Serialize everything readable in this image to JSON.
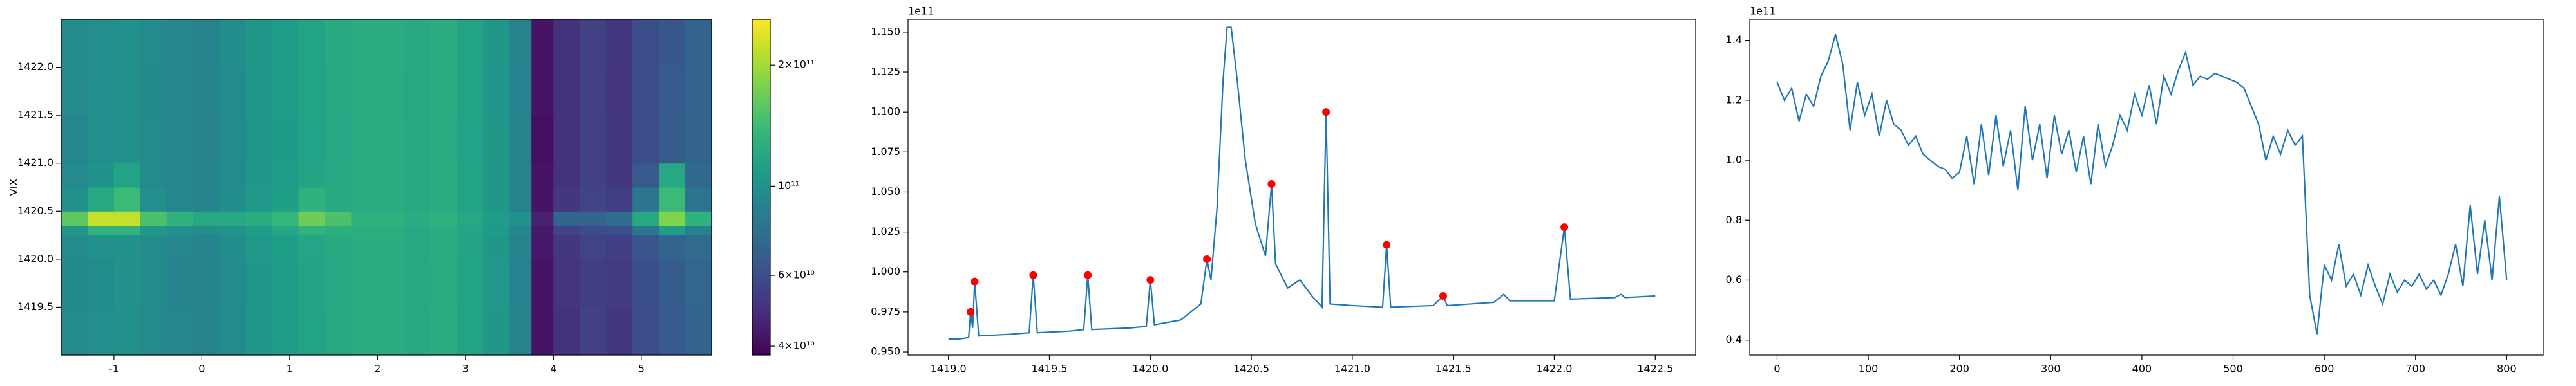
{
  "chart_data": [
    {
      "type": "heatmap",
      "ylabel": "VIX",
      "colormap": "viridis",
      "color_scale": "log",
      "xlim": [
        -1.6,
        5.8
      ],
      "ylim": [
        1419.0,
        1422.5
      ],
      "xticks": [
        -1,
        0,
        1,
        2,
        3,
        4,
        5
      ],
      "yticks": [
        1419.5,
        {
          "value": 1420,
          "label": "1420.0"
        },
        1420.5,
        {
          "value": 1421,
          "label": "1421.0"
        },
        1421.5,
        {
          "value": 1422,
          "label": "1422.0"
        }
      ],
      "x_edges": [
        -1.6,
        -1.3,
        -1.0,
        -0.7,
        -0.4,
        -0.1,
        0.2,
        0.5,
        0.8,
        1.1,
        1.4,
        1.7,
        2.0,
        2.3,
        2.6,
        2.9,
        3.2,
        3.5,
        3.75,
        4.0,
        4.3,
        4.6,
        4.9,
        5.2,
        5.5,
        5.8
      ],
      "y_edges": [
        1419.0,
        1419.5,
        1420.0,
        1420.25,
        1420.35,
        1420.5,
        1420.75,
        1421.0,
        1421.5,
        1422.0,
        1422.5
      ],
      "z": [
        [
          95000000000.0,
          98000000000.0,
          100000000000.0,
          95000000000.0,
          92000000000.0,
          90000000000.0,
          96000000000.0,
          105000000000.0,
          110000000000.0,
          115000000000.0,
          120000000000.0,
          125000000000.0,
          125000000000.0,
          120000000000.0,
          125000000000.0,
          115000000000.0,
          105000000000.0,
          90000000000.0,
          42000000000.0,
          50000000000.0,
          55000000000.0,
          52000000000.0,
          60000000000.0,
          65000000000.0,
          70000000000.0
        ],
        [
          94000000000.0,
          97000000000.0,
          101000000000.0,
          96000000000.0,
          91000000000.0,
          91000000000.0,
          95000000000.0,
          104000000000.0,
          110000000000.0,
          116000000000.0,
          120000000000.0,
          124000000000.0,
          126000000000.0,
          121000000000.0,
          124000000000.0,
          115000000000.0,
          106000000000.0,
          89000000000.0,
          42000000000.0,
          51000000000.0,
          54000000000.0,
          53000000000.0,
          61000000000.0,
          66000000000.0,
          71000000000.0
        ],
        [
          96000000000.0,
          100000000000.0,
          102000000000.0,
          96000000000.0,
          93000000000.0,
          91000000000.0,
          97000000000.0,
          106000000000.0,
          112000000000.0,
          117000000000.0,
          121000000000.0,
          125000000000.0,
          125000000000.0,
          120000000000.0,
          125000000000.0,
          116000000000.0,
          105000000000.0,
          90000000000.0,
          43000000000.0,
          52000000000.0,
          56000000000.0,
          54000000000.0,
          63000000000.0,
          70000000000.0,
          74000000000.0
        ],
        [
          105000000000.0,
          130000000000.0,
          130000000000.0,
          105000000000.0,
          100000000000.0,
          98000000000.0,
          102000000000.0,
          110000000000.0,
          118000000000.0,
          130000000000.0,
          128000000000.0,
          127000000000.0,
          127000000000.0,
          122000000000.0,
          126000000000.0,
          117000000000.0,
          107000000000.0,
          93000000000.0,
          43000000000.0,
          56000000000.0,
          60000000000.0,
          60000000000.0,
          80000000000.0,
          110000000000.0,
          90000000000.0
        ],
        [
          160000000000.0,
          220000000000.0,
          220000000000.0,
          150000000000.0,
          130000000000.0,
          120000000000.0,
          120000000000.0,
          125000000000.0,
          135000000000.0,
          170000000000.0,
          150000000000.0,
          130000000000.0,
          130000000000.0,
          125000000000.0,
          130000000000.0,
          120000000000.0,
          110000000000.0,
          100000000000.0,
          45000000000.0,
          70000000000.0,
          70000000000.0,
          75000000000.0,
          120000000000.0,
          180000000000.0,
          130000000000.0
        ],
        [
          100000000000.0,
          120000000000.0,
          140000000000.0,
          98000000000.0,
          93000000000.0,
          91000000000.0,
          97000000000.0,
          106000000000.0,
          112000000000.0,
          130000000000.0,
          122000000000.0,
          125000000000.0,
          125000000000.0,
          120000000000.0,
          125000000000.0,
          115000000000.0,
          105000000000.0,
          90000000000.0,
          42000000000.0,
          52000000000.0,
          56000000000.0,
          54000000000.0,
          80000000000.0,
          140000000000.0,
          80000000000.0
        ],
        [
          95000000000.0,
          102000000000.0,
          115000000000.0,
          95000000000.0,
          92000000000.0,
          90000000000.0,
          96000000000.0,
          105000000000.0,
          110000000000.0,
          116000000000.0,
          120000000000.0,
          125000000000.0,
          125000000000.0,
          120000000000.0,
          125000000000.0,
          115000000000.0,
          105000000000.0,
          90000000000.0,
          42000000000.0,
          50000000000.0,
          55000000000.0,
          52000000000.0,
          65000000000.0,
          120000000000.0,
          72000000000.0
        ],
        [
          93000000000.0,
          98000000000.0,
          100000000000.0,
          95000000000.0,
          92000000000.0,
          90000000000.0,
          95000000000.0,
          104000000000.0,
          109000000000.0,
          114000000000.0,
          119000000000.0,
          124000000000.0,
          125000000000.0,
          120000000000.0,
          124000000000.0,
          114000000000.0,
          105000000000.0,
          90000000000.0,
          41000000000.0,
          50000000000.0,
          55000000000.0,
          52000000000.0,
          60000000000.0,
          66000000000.0,
          70000000000.0
        ],
        [
          95000000000.0,
          99000000000.0,
          100000000000.0,
          94000000000.0,
          92000000000.0,
          90000000000.0,
          96000000000.0,
          105000000000.0,
          110000000000.0,
          115000000000.0,
          120000000000.0,
          125000000000.0,
          124000000000.0,
          120000000000.0,
          125000000000.0,
          115000000000.0,
          104000000000.0,
          89000000000.0,
          42000000000.0,
          50000000000.0,
          55000000000.0,
          51000000000.0,
          60000000000.0,
          65000000000.0,
          70000000000.0
        ],
        [
          96000000000.0,
          98000000000.0,
          100000000000.0,
          95000000000.0,
          93000000000.0,
          90000000000.0,
          97000000000.0,
          105000000000.0,
          110000000000.0,
          115000000000.0,
          121000000000.0,
          125000000000.0,
          125000000000.0,
          121000000000.0,
          125000000000.0,
          115000000000.0,
          105000000000.0,
          90000000000.0,
          42000000000.0,
          50000000000.0,
          55000000000.0,
          52000000000.0,
          60000000000.0,
          64000000000.0,
          70000000000.0
        ]
      ],
      "colorbar_lim": [
        38000000000.0,
        260000000000.0
      ],
      "colorbar_ticks": [
        {
          "value": 40000000000.0,
          "label": "4×10¹⁰"
        },
        {
          "value": 60000000000.0,
          "label": "6×10¹⁰"
        },
        {
          "value": 100000000000.0,
          "label": "10¹¹"
        },
        {
          "value": 200000000000.0,
          "label": "2×10¹¹"
        }
      ]
    },
    {
      "type": "line",
      "offset_label": "1e11",
      "xlim": [
        1418.8,
        1422.7
      ],
      "ylim": [
        94800000000.0,
        115800000000.0
      ],
      "xticks": [
        {
          "value": 1419,
          "label": "1419.0"
        },
        1419.5,
        {
          "value": 1420,
          "label": "1420.0"
        },
        1420.5,
        {
          "value": 1421,
          "label": "1421.0"
        },
        1421.5,
        {
          "value": 1422,
          "label": "1422.0"
        },
        1422.5
      ],
      "yticks": [
        {
          "value": 95000000000.0,
          "label": "0.950"
        },
        {
          "value": 97500000000.0,
          "label": "0.975"
        },
        {
          "value": 100000000000.0,
          "label": "1.000"
        },
        {
          "value": 102500000000.0,
          "label": "1.025"
        },
        {
          "value": 105000000000.0,
          "label": "1.050"
        },
        {
          "value": 107500000000.0,
          "label": "1.075"
        },
        {
          "value": 110000000000.0,
          "label": "1.100"
        },
        {
          "value": 112500000000.0,
          "label": "1.125"
        },
        {
          "value": 115000000000.0,
          "label": "1.150"
        }
      ],
      "series": [
        {
          "type": "line",
          "color": "#1f77b4",
          "x": [
            1419.0,
            1419.05,
            1419.1,
            1419.11,
            1419.12,
            1419.13,
            1419.15,
            1419.3,
            1419.4,
            1419.42,
            1419.44,
            1419.6,
            1419.67,
            1419.69,
            1419.71,
            1419.9,
            1419.98,
            1420.0,
            1420.02,
            1420.15,
            1420.25,
            1420.28,
            1420.3,
            1420.33,
            1420.36,
            1420.38,
            1420.4,
            1420.43,
            1420.47,
            1420.52,
            1420.57,
            1420.6,
            1420.62,
            1420.68,
            1420.74,
            1420.8,
            1420.85,
            1420.87,
            1420.89,
            1421.0,
            1421.15,
            1421.17,
            1421.19,
            1421.4,
            1421.45,
            1421.47,
            1421.7,
            1421.75,
            1421.78,
            1422.0,
            1422.05,
            1422.08,
            1422.3,
            1422.33,
            1422.35,
            1422.5
          ],
          "values": [
            95800000000.0,
            95800000000.0,
            95900000000.0,
            97500000000.0,
            96500000000.0,
            99400000000.0,
            96000000000.0,
            96100000000.0,
            96200000000.0,
            99800000000.0,
            96200000000.0,
            96300000000.0,
            96400000000.0,
            99800000000.0,
            96400000000.0,
            96500000000.0,
            96600000000.0,
            99500000000.0,
            96700000000.0,
            97000000000.0,
            98000000000.0,
            100800000000.0,
            99500000000.0,
            104000000000.0,
            112000000000.0,
            115300000000.0,
            115300000000.0,
            112000000000.0,
            107000000000.0,
            103000000000.0,
            101000000000.0,
            105500000000.0,
            100500000000.0,
            99000000000.0,
            99500000000.0,
            98500000000.0,
            97800000000.0,
            110000000000.0,
            98000000000.0,
            97900000000.0,
            97800000000.0,
            101700000000.0,
            97800000000.0,
            97900000000.0,
            98500000000.0,
            97900000000.0,
            98100000000.0,
            98600000000.0,
            98200000000.0,
            98200000000.0,
            102800000000.0,
            98300000000.0,
            98400000000.0,
            98600000000.0,
            98400000000.0,
            98500000000.0
          ]
        },
        {
          "type": "scatter",
          "color": "#ff0000",
          "x": [
            1419.11,
            1419.13,
            1419.42,
            1419.69,
            1420.0,
            1420.28,
            1420.6,
            1420.87,
            1421.17,
            1421.45,
            1422.05
          ],
          "values": [
            97500000000.0,
            99400000000.0,
            99800000000.0,
            99800000000.0,
            99500000000.0,
            100800000000.0,
            105500000000.0,
            110000000000.0,
            101700000000.0,
            98500000000.0,
            102800000000.0
          ]
        }
      ]
    },
    {
      "type": "line",
      "offset_label": "1e11",
      "xlim": [
        -30,
        840
      ],
      "ylim": [
        35000000000.0,
        147000000000.0
      ],
      "xticks": [
        0,
        100,
        200,
        300,
        400,
        500,
        600,
        700,
        800
      ],
      "yticks": [
        {
          "value": 40000000000.0,
          "label": "0.4"
        },
        {
          "value": 60000000000.0,
          "label": "0.6"
        },
        {
          "value": 80000000000.0,
          "label": "0.8"
        },
        {
          "value": 100000000000.0,
          "label": "1.0"
        },
        {
          "value": 120000000000.0,
          "label": "1.2"
        },
        {
          "value": 140000000000.0,
          "label": "1.4"
        }
      ],
      "series": [
        {
          "type": "line",
          "color": "#1f77b4",
          "x": [
            0,
            8,
            16,
            24,
            32,
            40,
            48,
            56,
            64,
            72,
            80,
            88,
            96,
            104,
            112,
            120,
            128,
            136,
            144,
            152,
            160,
            168,
            176,
            184,
            192,
            200,
            208,
            216,
            224,
            232,
            240,
            248,
            256,
            264,
            272,
            280,
            288,
            296,
            304,
            312,
            320,
            328,
            336,
            344,
            352,
            360,
            368,
            376,
            384,
            392,
            400,
            408,
            416,
            424,
            432,
            440,
            448,
            456,
            464,
            472,
            480,
            488,
            496,
            504,
            512,
            520,
            528,
            536,
            544,
            552,
            560,
            568,
            576,
            584,
            592,
            600,
            608,
            616,
            624,
            632,
            640,
            648,
            656,
            664,
            672,
            680,
            688,
            696,
            704,
            712,
            720,
            728,
            736,
            744,
            752,
            760,
            768,
            776,
            784,
            792,
            800
          ],
          "values": [
            126000000000.0,
            120000000000.0,
            124000000000.0,
            113000000000.0,
            122000000000.0,
            118000000000.0,
            128000000000.0,
            133000000000.0,
            142000000000.0,
            132000000000.0,
            110000000000.0,
            126000000000.0,
            115000000000.0,
            122000000000.0,
            108000000000.0,
            120000000000.0,
            112000000000.0,
            110000000000.0,
            105000000000.0,
            108000000000.0,
            102000000000.0,
            100000000000.0,
            98000000000.0,
            97000000000.0,
            94000000000.0,
            96000000000.0,
            108000000000.0,
            92000000000.0,
            112000000000.0,
            95000000000.0,
            115000000000.0,
            98000000000.0,
            110000000000.0,
            90000000000.0,
            118000000000.0,
            100000000000.0,
            112000000000.0,
            94000000000.0,
            115000000000.0,
            102000000000.0,
            110000000000.0,
            96000000000.0,
            108000000000.0,
            92000000000.0,
            112000000000.0,
            98000000000.0,
            105000000000.0,
            115000000000.0,
            110000000000.0,
            122000000000.0,
            115000000000.0,
            125000000000.0,
            112000000000.0,
            128000000000.0,
            122000000000.0,
            130000000000.0,
            136000000000.0,
            125000000000.0,
            128000000000.0,
            127000000000.0,
            129000000000.0,
            128000000000.0,
            127000000000.0,
            126000000000.0,
            124000000000.0,
            118000000000.0,
            112000000000.0,
            100000000000.0,
            108000000000.0,
            102000000000.0,
            110000000000.0,
            105000000000.0,
            108000000000.0,
            55000000000.0,
            42000000000.0,
            65000000000.0,
            60000000000.0,
            72000000000.0,
            58000000000.0,
            62000000000.0,
            55000000000.0,
            65000000000.0,
            58000000000.0,
            52000000000.0,
            62000000000.0,
            56000000000.0,
            60000000000.0,
            58000000000.0,
            62000000000.0,
            57000000000.0,
            60000000000.0,
            55000000000.0,
            62000000000.0,
            72000000000.0,
            58000000000.0,
            85000000000.0,
            62000000000.0,
            80000000000.0,
            60000000000.0,
            88000000000.0,
            60000000000.0
          ]
        }
      ]
    }
  ]
}
